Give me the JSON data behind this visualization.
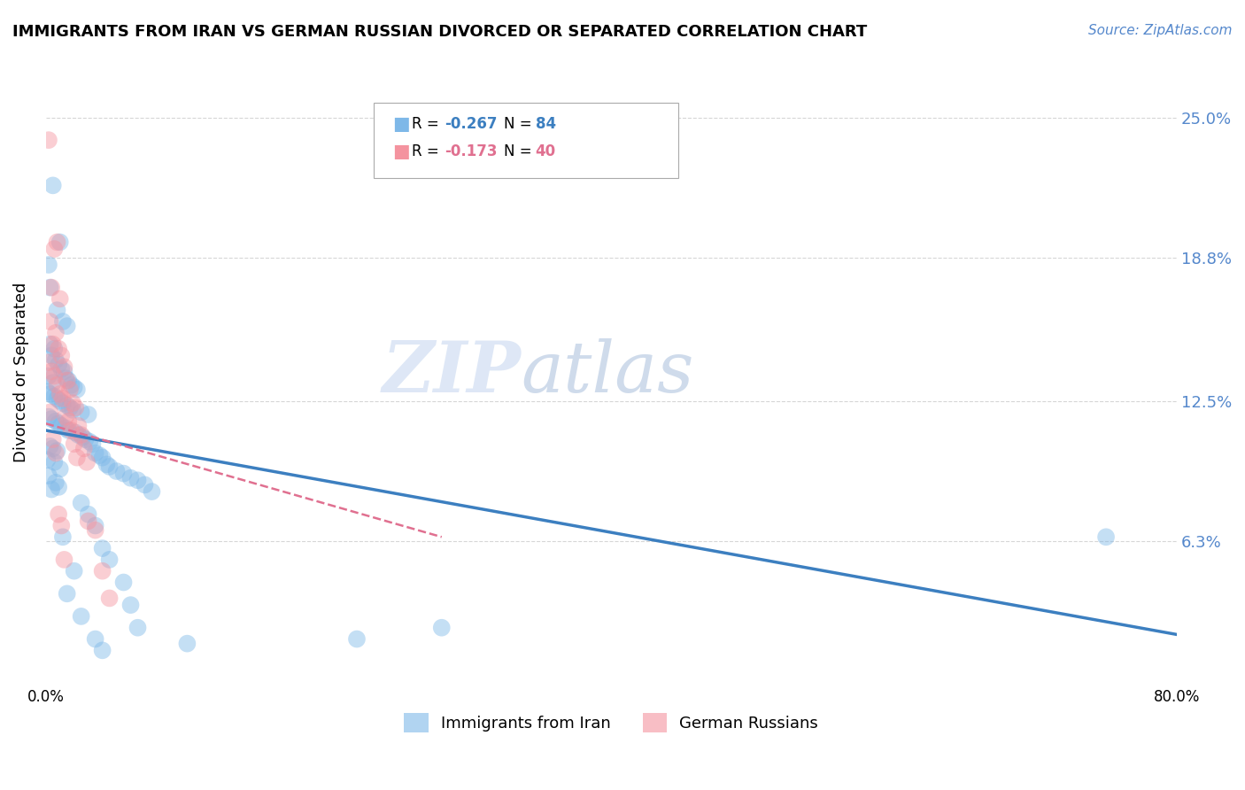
{
  "title": "IMMIGRANTS FROM IRAN VS GERMAN RUSSIAN DIVORCED OR SEPARATED CORRELATION CHART",
  "source": "Source: ZipAtlas.com",
  "ylabel": "Divorced or Separated",
  "ytick_labels": [
    "25.0%",
    "18.8%",
    "12.5%",
    "6.3%"
  ],
  "ytick_values": [
    0.25,
    0.188,
    0.125,
    0.063
  ],
  "watermark_zip": "ZIP",
  "watermark_atlas": "atlas",
  "legend_label_blue": "Immigrants from Iran",
  "legend_label_pink": "German Russians",
  "xmin": 0.0,
  "xmax": 0.8,
  "ymin": 0.0,
  "ymax": 0.275,
  "blue_scatter": [
    [
      0.005,
      0.22
    ],
    [
      0.01,
      0.195
    ],
    [
      0.002,
      0.185
    ],
    [
      0.003,
      0.175
    ],
    [
      0.008,
      0.165
    ],
    [
      0.012,
      0.16
    ],
    [
      0.015,
      0.158
    ],
    [
      0.003,
      0.15
    ],
    [
      0.006,
      0.148
    ],
    [
      0.004,
      0.145
    ],
    [
      0.007,
      0.143
    ],
    [
      0.009,
      0.141
    ],
    [
      0.011,
      0.139
    ],
    [
      0.013,
      0.138
    ],
    [
      0.002,
      0.136
    ],
    [
      0.014,
      0.135
    ],
    [
      0.016,
      0.134
    ],
    [
      0.005,
      0.133
    ],
    [
      0.018,
      0.132
    ],
    [
      0.02,
      0.131
    ],
    [
      0.022,
      0.13
    ],
    [
      0.001,
      0.129
    ],
    [
      0.003,
      0.128
    ],
    [
      0.006,
      0.127
    ],
    [
      0.008,
      0.126
    ],
    [
      0.01,
      0.125
    ],
    [
      0.012,
      0.124
    ],
    [
      0.015,
      0.123
    ],
    [
      0.017,
      0.122
    ],
    [
      0.019,
      0.121
    ],
    [
      0.025,
      0.12
    ],
    [
      0.03,
      0.119
    ],
    [
      0.002,
      0.118
    ],
    [
      0.004,
      0.117
    ],
    [
      0.007,
      0.116
    ],
    [
      0.009,
      0.115
    ],
    [
      0.011,
      0.114
    ],
    [
      0.014,
      0.113
    ],
    [
      0.016,
      0.112
    ],
    [
      0.021,
      0.111
    ],
    [
      0.023,
      0.11
    ],
    [
      0.026,
      0.109
    ],
    [
      0.028,
      0.108
    ],
    [
      0.031,
      0.107
    ],
    [
      0.033,
      0.106
    ],
    [
      0.003,
      0.105
    ],
    [
      0.005,
      0.104
    ],
    [
      0.008,
      0.103
    ],
    [
      0.035,
      0.102
    ],
    [
      0.038,
      0.101
    ],
    [
      0.04,
      0.1
    ],
    [
      0.001,
      0.099
    ],
    [
      0.006,
      0.098
    ],
    [
      0.043,
      0.097
    ],
    [
      0.045,
      0.096
    ],
    [
      0.01,
      0.095
    ],
    [
      0.05,
      0.094
    ],
    [
      0.055,
      0.093
    ],
    [
      0.002,
      0.092
    ],
    [
      0.06,
      0.091
    ],
    [
      0.065,
      0.09
    ],
    [
      0.007,
      0.089
    ],
    [
      0.07,
      0.088
    ],
    [
      0.009,
      0.087
    ],
    [
      0.004,
      0.086
    ],
    [
      0.075,
      0.085
    ],
    [
      0.025,
      0.08
    ],
    [
      0.03,
      0.075
    ],
    [
      0.035,
      0.07
    ],
    [
      0.012,
      0.065
    ],
    [
      0.04,
      0.06
    ],
    [
      0.045,
      0.055
    ],
    [
      0.02,
      0.05
    ],
    [
      0.055,
      0.045
    ],
    [
      0.015,
      0.04
    ],
    [
      0.06,
      0.035
    ],
    [
      0.025,
      0.03
    ],
    [
      0.065,
      0.025
    ],
    [
      0.75,
      0.065
    ],
    [
      0.035,
      0.02
    ],
    [
      0.04,
      0.015
    ],
    [
      0.28,
      0.025
    ],
    [
      0.22,
      0.02
    ],
    [
      0.1,
      0.018
    ]
  ],
  "pink_scatter": [
    [
      0.002,
      0.24
    ],
    [
      0.008,
      0.195
    ],
    [
      0.006,
      0.192
    ],
    [
      0.004,
      0.175
    ],
    [
      0.01,
      0.17
    ],
    [
      0.003,
      0.16
    ],
    [
      0.007,
      0.155
    ],
    [
      0.005,
      0.15
    ],
    [
      0.009,
      0.148
    ],
    [
      0.011,
      0.145
    ],
    [
      0.002,
      0.142
    ],
    [
      0.013,
      0.14
    ],
    [
      0.004,
      0.138
    ],
    [
      0.006,
      0.136
    ],
    [
      0.015,
      0.134
    ],
    [
      0.008,
      0.132
    ],
    [
      0.017,
      0.13
    ],
    [
      0.01,
      0.128
    ],
    [
      0.012,
      0.126
    ],
    [
      0.019,
      0.124
    ],
    [
      0.021,
      0.122
    ],
    [
      0.003,
      0.12
    ],
    [
      0.014,
      0.118
    ],
    [
      0.016,
      0.116
    ],
    [
      0.023,
      0.114
    ],
    [
      0.018,
      0.112
    ],
    [
      0.025,
      0.11
    ],
    [
      0.005,
      0.108
    ],
    [
      0.02,
      0.106
    ],
    [
      0.027,
      0.104
    ],
    [
      0.007,
      0.102
    ],
    [
      0.022,
      0.1
    ],
    [
      0.029,
      0.098
    ],
    [
      0.009,
      0.075
    ],
    [
      0.03,
      0.072
    ],
    [
      0.011,
      0.07
    ],
    [
      0.035,
      0.068
    ],
    [
      0.013,
      0.055
    ],
    [
      0.04,
      0.05
    ],
    [
      0.045,
      0.038
    ]
  ],
  "blue_line_x": [
    0.0,
    0.8
  ],
  "blue_line_y": [
    0.112,
    0.022
  ],
  "pink_line_x": [
    0.0,
    0.28
  ],
  "pink_line_y": [
    0.115,
    0.065
  ],
  "background_color": "#ffffff",
  "grid_color": "#cccccc",
  "blue_color": "#7eb8e8",
  "pink_color": "#f4939f",
  "blue_line_color": "#3c7fc0",
  "pink_line_color": "#e07090",
  "right_tick_color": "#5588cc"
}
